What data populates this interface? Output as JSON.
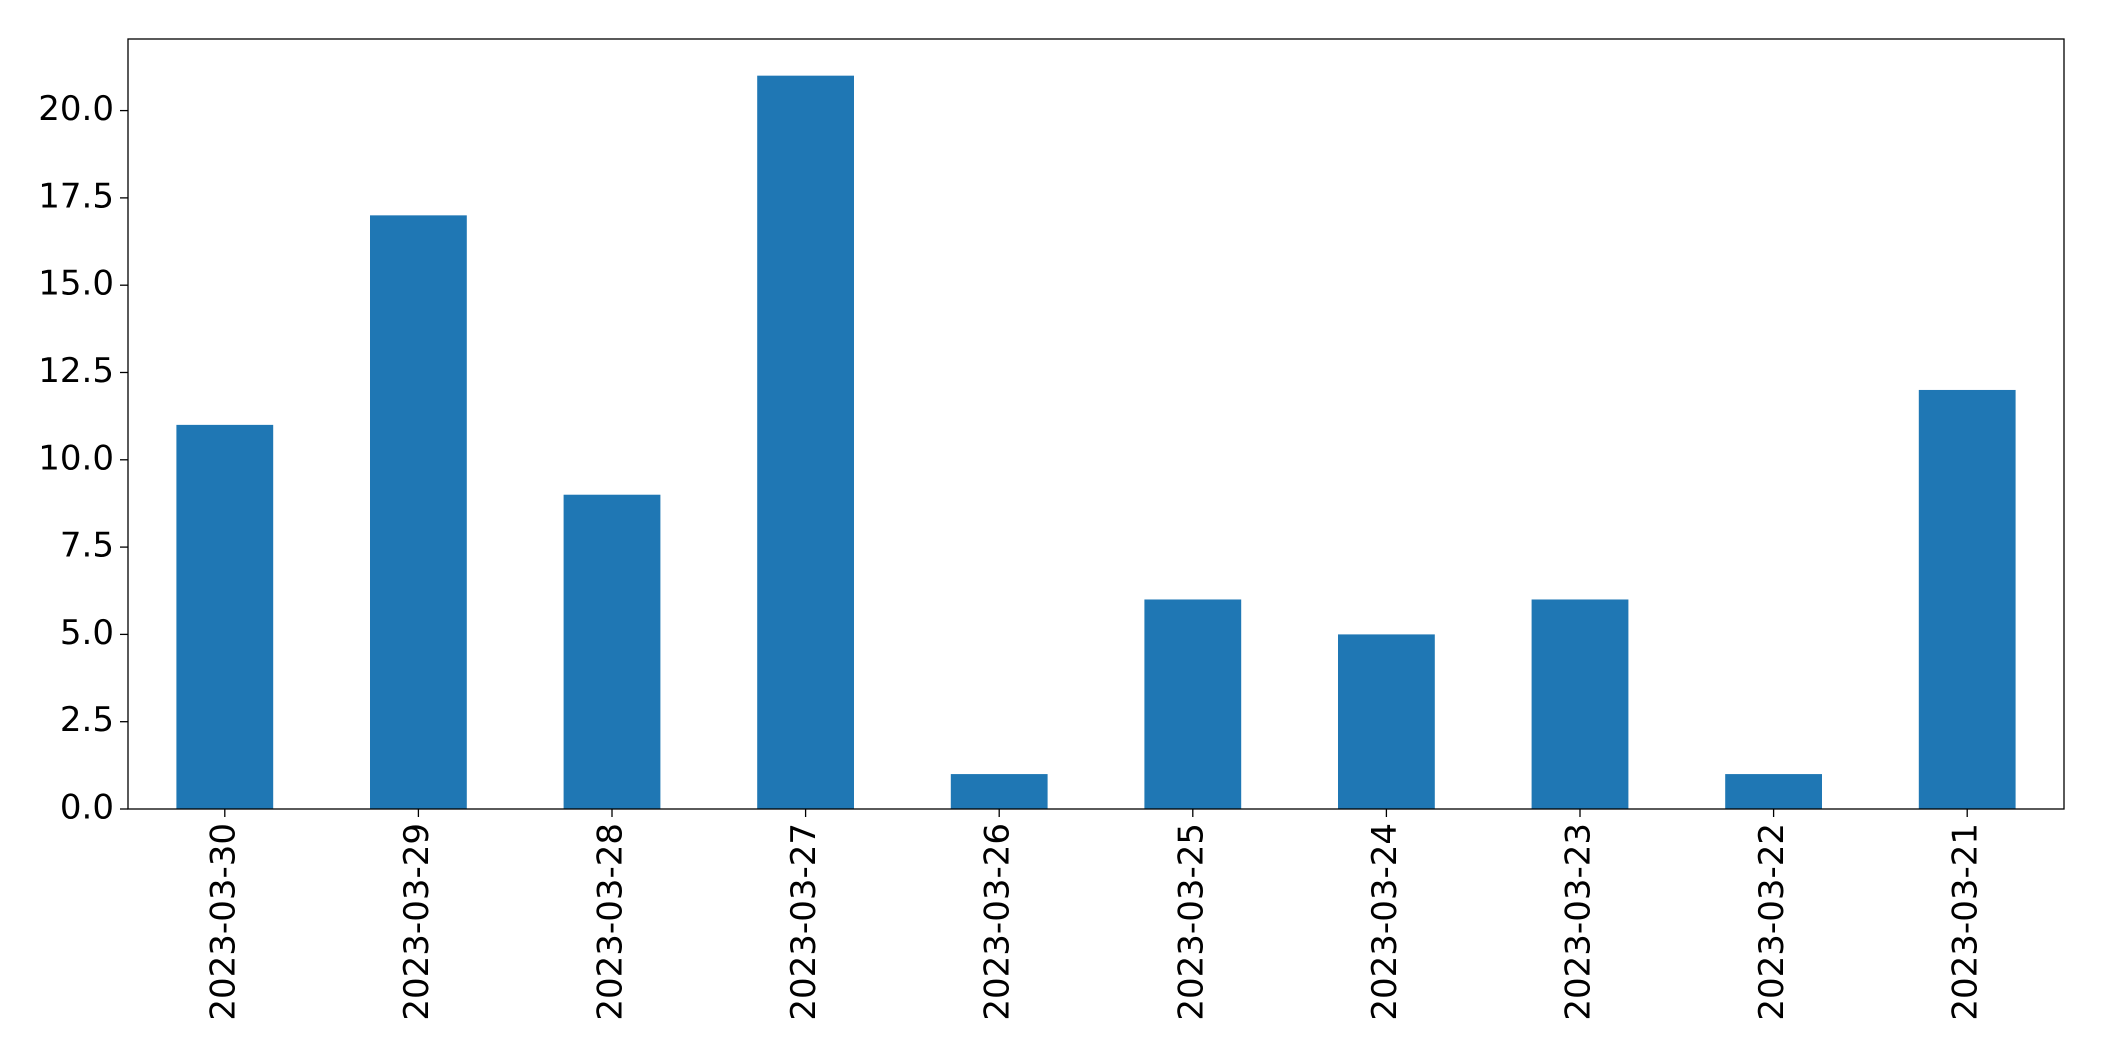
{
  "chart_data": {
    "type": "bar",
    "categories": [
      "2023-03-30",
      "2023-03-29",
      "2023-03-28",
      "2023-03-27",
      "2023-03-26",
      "2023-03-25",
      "2023-03-24",
      "2023-03-23",
      "2023-03-22",
      "2023-03-21"
    ],
    "values": [
      11,
      17,
      9,
      21,
      1,
      6,
      5,
      6,
      1,
      12
    ],
    "color": "#1f77b4",
    "ylim": [
      0,
      22.05
    ],
    "yticks": [
      {
        "value": 0,
        "label": "0.0"
      },
      2.5,
      {
        "value": 5,
        "label": "5.0"
      },
      7.5,
      {
        "value": 10,
        "label": "10.0"
      },
      12.5,
      {
        "value": 15,
        "label": "15.0"
      },
      17.5,
      {
        "value": 20,
        "label": "20.0"
      }
    ],
    "grid": false
  }
}
